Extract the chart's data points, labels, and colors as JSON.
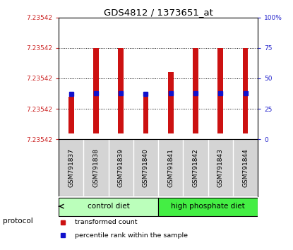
{
  "title": "GDS4812 / 1373651_at",
  "samples": [
    "GSM791837",
    "GSM791838",
    "GSM791839",
    "GSM791840",
    "GSM791841",
    "GSM791842",
    "GSM791843",
    "GSM791844"
  ],
  "bar_bottoms_pct": [
    5,
    5,
    5,
    5,
    5,
    5,
    5,
    5
  ],
  "bar_tops_pct": [
    35,
    75,
    75,
    35,
    55,
    75,
    75,
    75
  ],
  "percentile_ranks": [
    37,
    38,
    38,
    37,
    38,
    38,
    38,
    38
  ],
  "y_ticks_pct": [
    0,
    25,
    50,
    75,
    100
  ],
  "y_tick_labels_left": [
    "7.23542",
    "7.23542",
    "7.23542",
    "7.23542",
    "7.23542"
  ],
  "right_y_tick_labels": [
    "0",
    "25",
    "50",
    "75",
    "100%"
  ],
  "bar_color": "#cc1111",
  "dot_color": "#1111cc",
  "protocol_groups": [
    {
      "label": "control diet",
      "start": 0,
      "end": 3,
      "color": "#bbffbb"
    },
    {
      "label": "high phosphate diet",
      "start": 4,
      "end": 7,
      "color": "#44ee44"
    }
  ],
  "legend_items": [
    {
      "label": "transformed count",
      "color": "#cc1111"
    },
    {
      "label": "percentile rank within the sample",
      "color": "#1111cc"
    }
  ],
  "protocol_label": "protocol",
  "background_color": "#ffffff",
  "plot_bg": "#ffffff",
  "left_label_color": "#cc2222",
  "right_label_color": "#2222cc",
  "sample_bg_color": "#d4d4d4",
  "sample_border_color": "#999999"
}
